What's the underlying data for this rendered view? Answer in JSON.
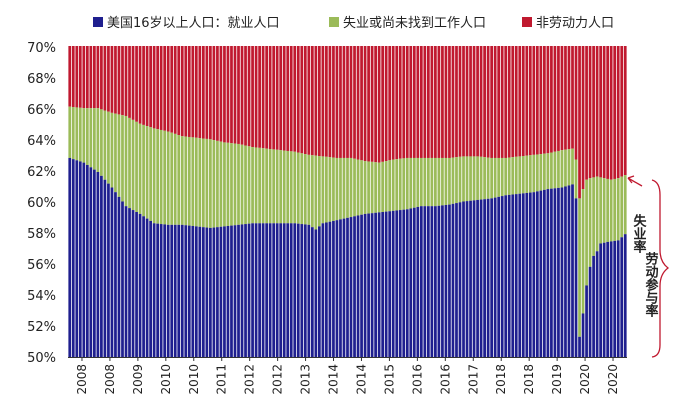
{
  "chart_data": {
    "type": "bar",
    "stacked": true,
    "title": "",
    "xlabel": "",
    "ylabel": "",
    "ylim": [
      50,
      70
    ],
    "y_ticks": [
      "50%",
      "52%",
      "54%",
      "56%",
      "58%",
      "60%",
      "62%",
      "64%",
      "66%",
      "68%",
      "70%"
    ],
    "x_tick_labels": [
      "2008",
      "2008",
      "2009",
      "2010",
      "2010",
      "2011",
      "2012",
      "2012",
      "2013",
      "2014",
      "2014",
      "2015",
      "2016",
      "2016",
      "2017",
      "2018",
      "2018",
      "2019",
      "2020",
      "2020"
    ],
    "legend": [
      "美国16岁以上人口：就业人口",
      "失业或尚未找到工作人口",
      "非劳动力人口"
    ],
    "colors": {
      "employed": "#1f1f8f",
      "unemployed": "#9bbb59",
      "not_in_labor_force": "#c0192f"
    },
    "anchors": {
      "employment_ratio": [
        [
          0,
          62.8
        ],
        [
          4,
          62.5
        ],
        [
          8,
          61.9
        ],
        [
          12,
          60.9
        ],
        [
          16,
          59.7
        ],
        [
          20,
          59.2
        ],
        [
          24,
          58.6
        ],
        [
          28,
          58.5
        ],
        [
          32,
          58.5
        ],
        [
          36,
          58.4
        ],
        [
          40,
          58.3
        ],
        [
          44,
          58.4
        ],
        [
          48,
          58.5
        ],
        [
          52,
          58.6
        ],
        [
          56,
          58.6
        ],
        [
          60,
          58.6
        ],
        [
          64,
          58.6
        ],
        [
          68,
          58.5
        ],
        [
          70,
          58.2
        ],
        [
          72,
          58.6
        ],
        [
          76,
          58.8
        ],
        [
          80,
          59.0
        ],
        [
          84,
          59.2
        ],
        [
          88,
          59.3
        ],
        [
          92,
          59.4
        ],
        [
          96,
          59.5
        ],
        [
          100,
          59.7
        ],
        [
          104,
          59.7
        ],
        [
          108,
          59.8
        ],
        [
          112,
          60.0
        ],
        [
          116,
          60.1
        ],
        [
          120,
          60.2
        ],
        [
          124,
          60.4
        ],
        [
          128,
          60.5
        ],
        [
          132,
          60.6
        ],
        [
          136,
          60.8
        ],
        [
          140,
          60.9
        ],
        [
          143,
          61.1
        ],
        [
          144,
          60.2
        ],
        [
          145,
          51.3
        ],
        [
          146,
          52.8
        ],
        [
          147,
          54.6
        ],
        [
          148,
          55.8
        ],
        [
          149,
          56.5
        ],
        [
          150,
          56.8
        ],
        [
          151,
          57.3
        ],
        [
          153,
          57.4
        ],
        [
          156,
          57.5
        ],
        [
          158,
          57.9
        ]
      ],
      "participation_rate": [
        [
          0,
          66.1
        ],
        [
          4,
          66.0
        ],
        [
          8,
          66.0
        ],
        [
          12,
          65.7
        ],
        [
          16,
          65.5
        ],
        [
          20,
          65.0
        ],
        [
          24,
          64.7
        ],
        [
          28,
          64.5
        ],
        [
          32,
          64.2
        ],
        [
          36,
          64.1
        ],
        [
          40,
          64.0
        ],
        [
          44,
          63.8
        ],
        [
          48,
          63.7
        ],
        [
          52,
          63.5
        ],
        [
          56,
          63.4
        ],
        [
          60,
          63.3
        ],
        [
          64,
          63.2
        ],
        [
          68,
          63.0
        ],
        [
          72,
          62.9
        ],
        [
          76,
          62.8
        ],
        [
          80,
          62.8
        ],
        [
          84,
          62.6
        ],
        [
          88,
          62.5
        ],
        [
          92,
          62.7
        ],
        [
          96,
          62.8
        ],
        [
          100,
          62.8
        ],
        [
          104,
          62.8
        ],
        [
          108,
          62.8
        ],
        [
          112,
          62.9
        ],
        [
          116,
          62.9
        ],
        [
          120,
          62.8
        ],
        [
          124,
          62.8
        ],
        [
          128,
          62.9
        ],
        [
          132,
          63.0
        ],
        [
          136,
          63.1
        ],
        [
          140,
          63.3
        ],
        [
          143,
          63.4
        ],
        [
          144,
          62.7
        ],
        [
          145,
          60.2
        ],
        [
          146,
          60.8
        ],
        [
          147,
          61.4
        ],
        [
          148,
          61.5
        ],
        [
          150,
          61.6
        ],
        [
          152,
          61.5
        ],
        [
          154,
          61.4
        ],
        [
          156,
          61.5
        ],
        [
          158,
          61.7
        ]
      ]
    },
    "bar_count": 159,
    "annotations": [
      "失业率",
      "劳动参与率"
    ]
  }
}
